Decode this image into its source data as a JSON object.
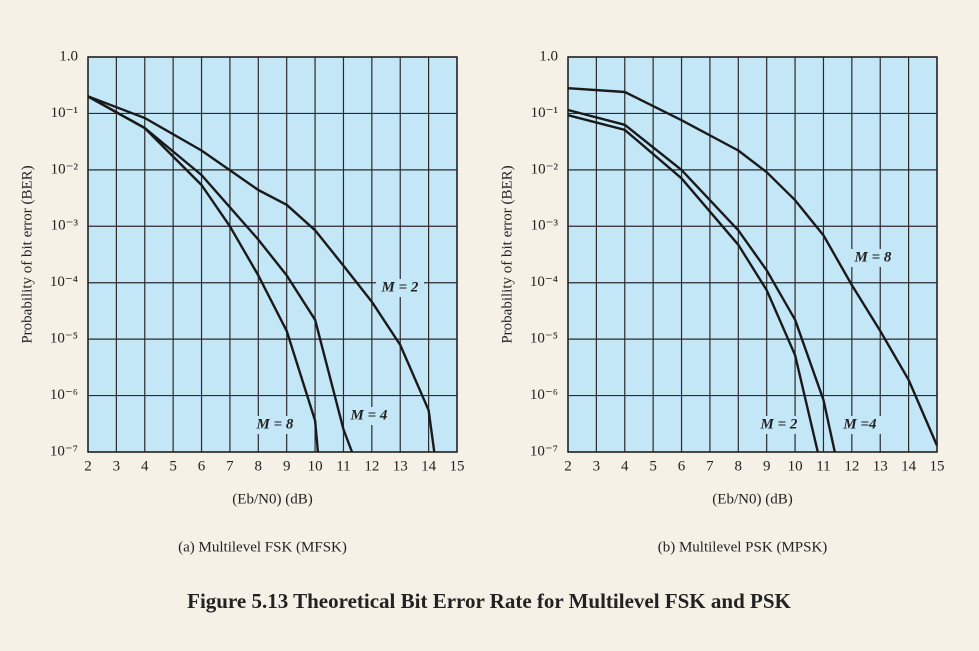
{
  "figure_caption": "Figure 5.13 Theoretical Bit Error Rate for Multilevel FSK and PSK",
  "chart_data": [
    {
      "type": "line",
      "subtitle": "(a) Multilevel FSK (MFSK)",
      "x_label": "(Eb/N0) (dB)",
      "y_label": "Probability of bit error (BER)",
      "log_y": true,
      "grid": true,
      "xlim": [
        2,
        15
      ],
      "ylim": [
        1e-07,
        1
      ],
      "xticks": [
        2,
        3,
        4,
        5,
        6,
        7,
        8,
        9,
        10,
        11,
        12,
        13,
        14,
        15
      ],
      "yticks": [
        {
          "value": 1,
          "label": "1.0"
        },
        {
          "value": 0.1,
          "label": "10⁻¹"
        },
        {
          "value": 0.01,
          "label": "10⁻²"
        },
        {
          "value": 0.001,
          "label": "10⁻³"
        },
        {
          "value": 0.0001,
          "label": "10⁻⁴"
        },
        {
          "value": 1e-05,
          "label": "10⁻⁵"
        },
        {
          "value": 1e-06,
          "label": "10⁻⁶"
        },
        {
          "value": 1e-07,
          "label": "10⁻⁷"
        }
      ],
      "series": [
        {
          "name": "M = 2",
          "color": "#1a1a1a",
          "x": [
            2,
            4,
            6,
            8,
            9,
            10,
            11,
            12,
            13,
            14,
            14.2
          ],
          "values": [
            0.2,
            0.083,
            0.022,
            0.0044,
            0.0024,
            0.00085,
            0.0002,
            4.6e-05,
            7.9e-06,
            5.5e-07,
            1e-07
          ]
        },
        {
          "name": "M = 4",
          "color": "#1a1a1a",
          "x": [
            2,
            4,
            6,
            8,
            9,
            10,
            11,
            11.3
          ],
          "values": [
            0.2,
            0.055,
            0.0081,
            0.00058,
            0.000135,
            2.2e-05,
            2.5e-07,
            1e-07
          ]
        },
        {
          "name": "M = 8",
          "color": "#1a1a1a",
          "x": [
            2,
            4,
            6,
            7,
            8,
            9,
            10,
            10.1
          ],
          "values": [
            0.2,
            0.055,
            0.0054,
            0.001,
            0.000135,
            1.4e-05,
            3.6e-07,
            1e-07
          ]
        }
      ]
    },
    {
      "type": "line",
      "subtitle": "(b) Multilevel PSK (MPSK)",
      "x_label": "(Eb/N0) (dB)",
      "y_label": "Probability of bit error (BER)",
      "log_y": true,
      "grid": true,
      "xlim": [
        2,
        15
      ],
      "ylim": [
        1e-07,
        1
      ],
      "xticks": [
        2,
        3,
        4,
        5,
        6,
        7,
        8,
        9,
        10,
        11,
        12,
        13,
        14,
        15
      ],
      "yticks": [
        {
          "value": 1,
          "label": "1.0"
        },
        {
          "value": 0.1,
          "label": "10⁻¹"
        },
        {
          "value": 0.01,
          "label": "10⁻²"
        },
        {
          "value": 0.001,
          "label": "10⁻³"
        },
        {
          "value": 0.0001,
          "label": "10⁻⁴"
        },
        {
          "value": 1e-05,
          "label": "10⁻⁵"
        },
        {
          "value": 1e-06,
          "label": "10⁻⁶"
        },
        {
          "value": 1e-07,
          "label": "10⁻⁷"
        }
      ],
      "series": [
        {
          "name": "M = 2",
          "color": "#1a1a1a",
          "x": [
            2,
            4,
            6,
            8,
            9,
            10,
            10.8
          ],
          "values": [
            0.093,
            0.051,
            0.0071,
            0.00047,
            7.4e-05,
            5.2e-06,
            1e-07
          ]
        },
        {
          "name": "M =4",
          "color": "#1a1a1a",
          "x": [
            2,
            4,
            6,
            8,
            9,
            10,
            11,
            11.4
          ],
          "values": [
            0.115,
            0.063,
            0.01,
            0.00085,
            0.000166,
            2.2e-05,
            8.3e-07,
            1e-07
          ]
        },
        {
          "name": "M = 8",
          "color": "#1a1a1a",
          "x": [
            2,
            4,
            6,
            8,
            9,
            10,
            11,
            12,
            13,
            14,
            15
          ],
          "values": [
            0.28,
            0.24,
            0.076,
            0.022,
            0.0091,
            0.0029,
            0.00069,
            9.1e-05,
            1.4e-05,
            1.9e-06,
            1.3e-07
          ]
        }
      ]
    }
  ]
}
